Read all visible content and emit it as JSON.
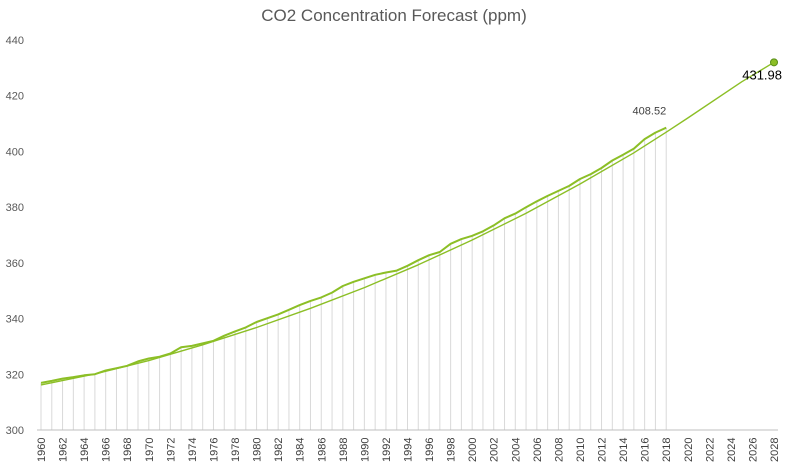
{
  "chart_data": {
    "type": "line",
    "title": "CO2 Concentration Forecast (ppm)",
    "xlabel": "",
    "ylabel": "",
    "ylim": [
      300,
      440
    ],
    "y_ticks": [
      300,
      320,
      340,
      360,
      380,
      400,
      420,
      440
    ],
    "x": [
      1960,
      1961,
      1962,
      1963,
      1964,
      1965,
      1966,
      1967,
      1968,
      1969,
      1970,
      1971,
      1972,
      1973,
      1974,
      1975,
      1976,
      1977,
      1978,
      1979,
      1980,
      1981,
      1982,
      1983,
      1984,
      1985,
      1986,
      1987,
      1988,
      1989,
      1990,
      1991,
      1992,
      1993,
      1994,
      1995,
      1996,
      1997,
      1998,
      1999,
      2000,
      2001,
      2002,
      2003,
      2004,
      2005,
      2006,
      2007,
      2008,
      2009,
      2010,
      2011,
      2012,
      2013,
      2014,
      2015,
      2016,
      2017,
      2018,
      2019,
      2020,
      2021,
      2022,
      2023,
      2024,
      2025,
      2026,
      2027,
      2028
    ],
    "x_tick_labels": [
      "1960",
      "1962",
      "1964",
      "1966",
      "1968",
      "1970",
      "1972",
      "1974",
      "1976",
      "1978",
      "1980",
      "1982",
      "1984",
      "1986",
      "1988",
      "1990",
      "1992",
      "1994",
      "1996",
      "1998",
      "2000",
      "2002",
      "2004",
      "2006",
      "2008",
      "2010",
      "2012",
      "2014",
      "2016",
      "2018",
      "2020",
      "2022",
      "2024",
      "2026",
      "2028"
    ],
    "grid": false,
    "legend": "none",
    "colors": {
      "line": "#8cbf26",
      "marker": "#5a8f1a",
      "droplines": "#d9d9d9",
      "axis": "#bfbfbf"
    },
    "series": [
      {
        "kind": "actual",
        "x": [
          1960,
          1961,
          1962,
          1963,
          1964,
          1965,
          1966,
          1967,
          1968,
          1969,
          1970,
          1971,
          1972,
          1973,
          1974,
          1975,
          1976,
          1977,
          1978,
          1979,
          1980,
          1981,
          1982,
          1983,
          1984,
          1985,
          1986,
          1987,
          1988,
          1989,
          1990,
          1991,
          1992,
          1993,
          1994,
          1995,
          1996,
          1997,
          1998,
          1999,
          2000,
          2001,
          2002,
          2003,
          2004,
          2005,
          2006,
          2007,
          2008,
          2009,
          2010,
          2011,
          2012,
          2013,
          2014,
          2015,
          2016,
          2017,
          2018
        ],
        "values": [
          316.91,
          317.64,
          318.45,
          318.99,
          319.62,
          320.04,
          321.37,
          322.18,
          323.05,
          324.62,
          325.68,
          326.32,
          327.46,
          329.68,
          330.19,
          331.13,
          332.03,
          333.84,
          335.41,
          336.84,
          338.76,
          340.12,
          341.48,
          343.15,
          344.85,
          346.35,
          347.61,
          349.31,
          351.69,
          353.2,
          354.45,
          355.7,
          356.54,
          357.21,
          358.96,
          360.97,
          362.74,
          363.88,
          366.84,
          368.54,
          369.71,
          371.32,
          373.45,
          375.98,
          377.7,
          379.98,
          382.09,
          384.02,
          385.83,
          387.64,
          390.1,
          391.85,
          394.06,
          396.74,
          398.81,
          401.01,
          404.41,
          406.76,
          408.52
        ]
      },
      {
        "kind": "forecast",
        "x": [
          1960,
          1965,
          1970,
          1975,
          1980,
          1985,
          1990,
          1995,
          2000,
          2005,
          2010,
          2015,
          2018,
          2020,
          2025,
          2028
        ],
        "values": [
          316.2,
          320.1,
          324.9,
          330.6,
          336.8,
          343.7,
          351.1,
          359.3,
          368.2,
          377.8,
          388.3,
          399.5,
          406.9,
          412.0,
          425.0,
          431.98
        ]
      }
    ],
    "annotations": [
      {
        "x": 2018,
        "y": 408.52,
        "text": "408.52"
      },
      {
        "x": 2028,
        "y": 431.98,
        "text": "431.98"
      }
    ]
  }
}
